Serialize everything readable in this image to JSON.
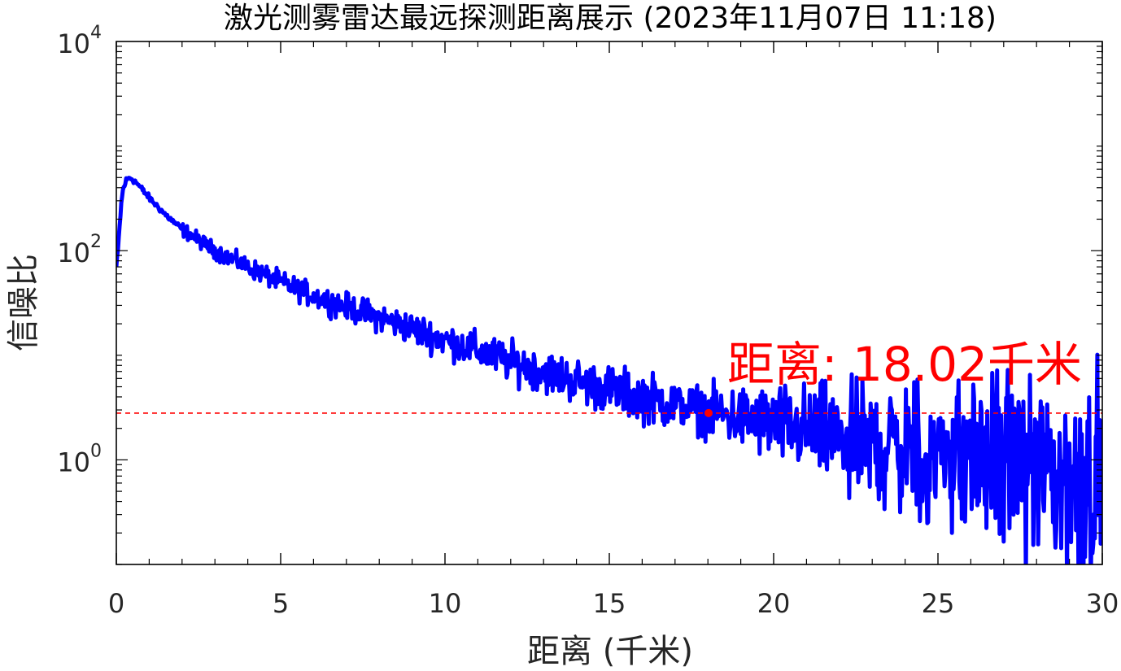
{
  "chart_data": {
    "type": "line",
    "title": "激光测雾雷达最远探测距离展示 (2023年11月07日 11:18)",
    "xlabel": "距离 (千米)",
    "ylabel": "信噪比",
    "xlim": [
      0,
      30
    ],
    "ylim": [
      0.1,
      10000
    ],
    "yscale": "log",
    "grid": false,
    "x_ticks": [
      0,
      5,
      10,
      15,
      20,
      25,
      30
    ],
    "x_tick_labels": [
      "0",
      "5",
      "10",
      "15",
      "20",
      "25",
      "30"
    ],
    "y_ticks": [
      1,
      100,
      10000
    ],
    "y_tick_labels": [
      {
        "base": "10",
        "exp": "0"
      },
      {
        "base": "10",
        "exp": "2"
      },
      {
        "base": "10",
        "exp": "4"
      }
    ],
    "series": [
      {
        "color": "#0000ff",
        "noisy_after_x": 17,
        "x": [
          0,
          0.05,
          0.1,
          0.15,
          0.2,
          0.3,
          0.4,
          0.5,
          0.6,
          0.8,
          1.0,
          1.5,
          2,
          3,
          4,
          5,
          6,
          7,
          8,
          9,
          10,
          11,
          12,
          13,
          14,
          15,
          16,
          17,
          18,
          19,
          20,
          21,
          22,
          23,
          24,
          25,
          26,
          27,
          28,
          29,
          30
        ],
        "y": [
          70,
          100,
          170,
          280,
          380,
          470,
          500,
          480,
          450,
          380,
          320,
          220,
          160,
          100,
          70,
          50,
          37,
          29,
          23,
          18,
          14,
          11,
          8.7,
          7.0,
          5.7,
          4.7,
          4.0,
          3.4,
          2.9,
          2.5,
          2.2,
          1.9,
          1.7,
          1.5,
          1.35,
          1.2,
          1.1,
          1.0,
          0.9,
          0.8,
          0.7
        ]
      }
    ],
    "threshold": {
      "y": 2.8,
      "color": "#ff0000",
      "style": "dashed"
    },
    "marker": {
      "x": 18.02,
      "y": 2.8,
      "color": "#ff0000"
    },
    "annotation": {
      "text": "距离: 18.02千米",
      "color": "#ff0000"
    }
  }
}
